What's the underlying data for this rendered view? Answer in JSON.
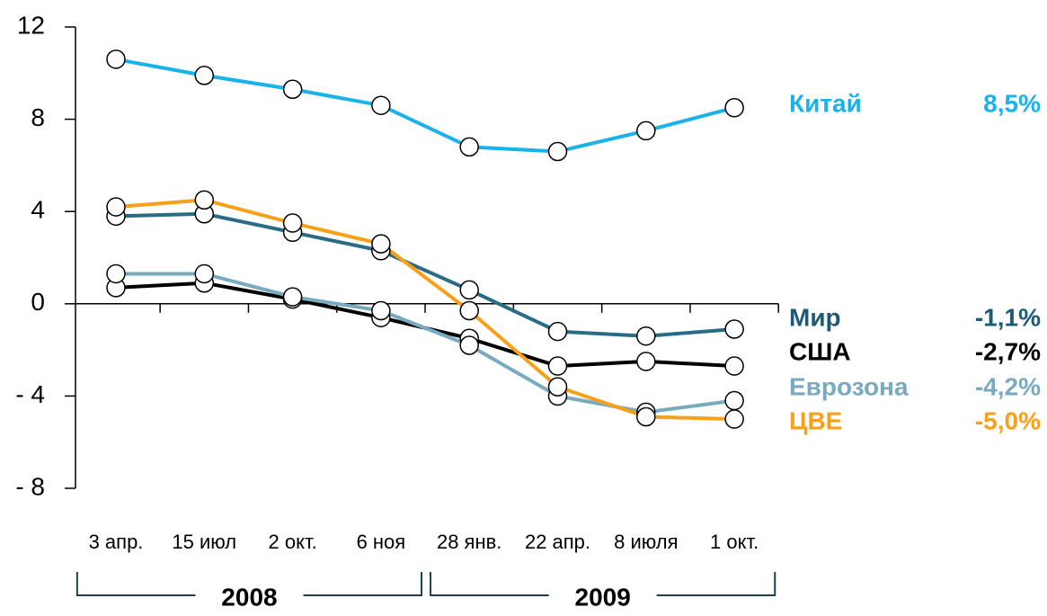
{
  "chart_data": {
    "type": "line",
    "categories": [
      "3 апр.",
      "15 июл",
      "2 окт.",
      "6 ноя",
      "28 янв.",
      "22 апр.",
      "8 июля",
      "1 окт."
    ],
    "groups": [
      {
        "label": "2008",
        "from": 0,
        "to": 3
      },
      {
        "label": "2009",
        "from": 4,
        "to": 7
      }
    ],
    "ylim": [
      -8,
      12
    ],
    "yticks": [
      12,
      8,
      4,
      0,
      {
        "value": -4,
        "label": "- 4"
      },
      {
        "value": -8,
        "label": "- 8"
      }
    ],
    "series": [
      {
        "name": "Китай",
        "color": "#1ab2ea",
        "values": [
          10.6,
          9.9,
          9.3,
          8.6,
          6.8,
          6.6,
          7.5,
          8.5
        ],
        "end_label": "8,5%"
      },
      {
        "name": "Мир",
        "color": "#2a6b86",
        "values": [
          3.8,
          3.9,
          3.1,
          2.3,
          0.6,
          -1.2,
          -1.4,
          -1.1
        ],
        "end_label": "-1,1%"
      },
      {
        "name": "США",
        "color": "#000000",
        "values": [
          0.7,
          0.9,
          0.2,
          -0.6,
          -1.5,
          -2.7,
          -2.5,
          -2.7
        ],
        "end_label": "-2,7%"
      },
      {
        "name": "Еврозона",
        "color": "#7aaabf",
        "values": [
          1.3,
          1.3,
          0.3,
          -0.3,
          -1.8,
          -4.0,
          -4.7,
          -4.2
        ],
        "end_label": "-4,2%"
      },
      {
        "name": "ЦВЕ",
        "color": "#f7a11a",
        "values": [
          4.2,
          4.5,
          3.5,
          2.6,
          -0.3,
          -3.6,
          -4.9,
          -5.0
        ],
        "end_label": "-5,0%"
      }
    ]
  }
}
